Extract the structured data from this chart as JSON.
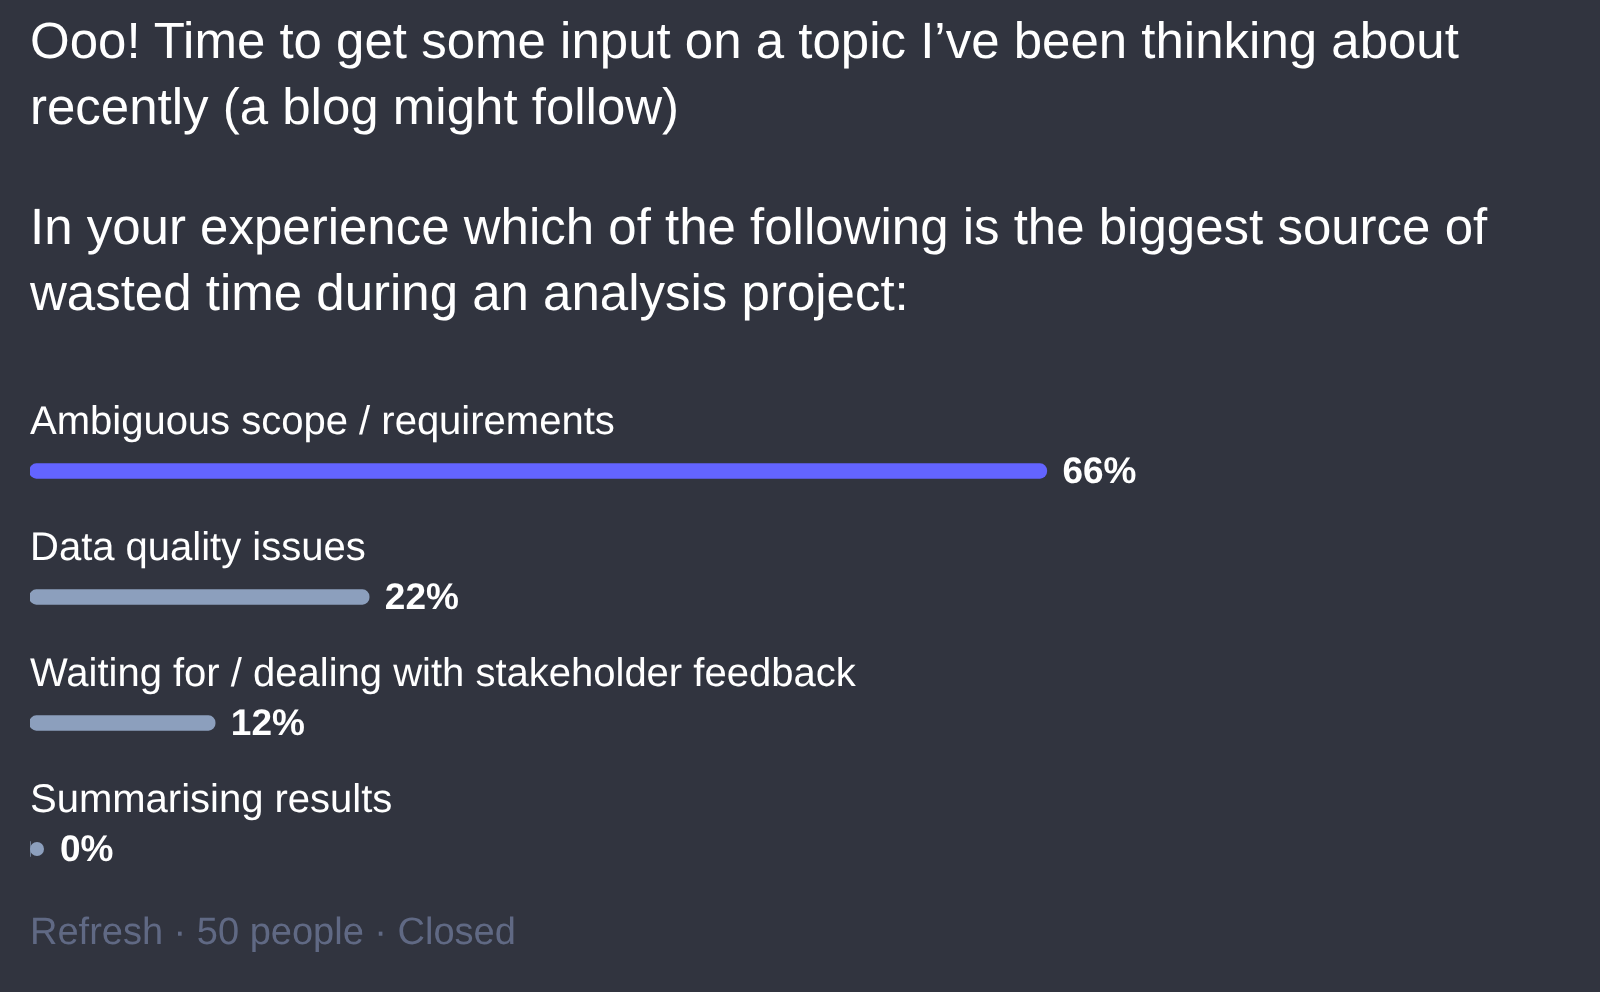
{
  "chart_data": {
    "type": "bar",
    "title": "Ooo! Time to get some input on a topic I’ve been thinking about recently (a blog might follow)",
    "subtitle": "In your experience which of the following is the biggest source of wasted time during an analysis project:",
    "categories": [
      "Ambiguous scope / requirements",
      "Data quality issues",
      "Waiting for / dealing with stakeholder feedback",
      "Summarising results"
    ],
    "values": [
      66,
      22,
      12,
      0
    ],
    "colors": [
      "#6364ff",
      "#8c9fbd",
      "#8c9fbd",
      "#8c9fbd"
    ],
    "value_labels": [
      "66%",
      "22%",
      "12%",
      "0%"
    ],
    "orientation": "horizontal",
    "tick_labels": "y",
    "annotations": [
      "Refresh · 50 people · Closed"
    ]
  }
}
